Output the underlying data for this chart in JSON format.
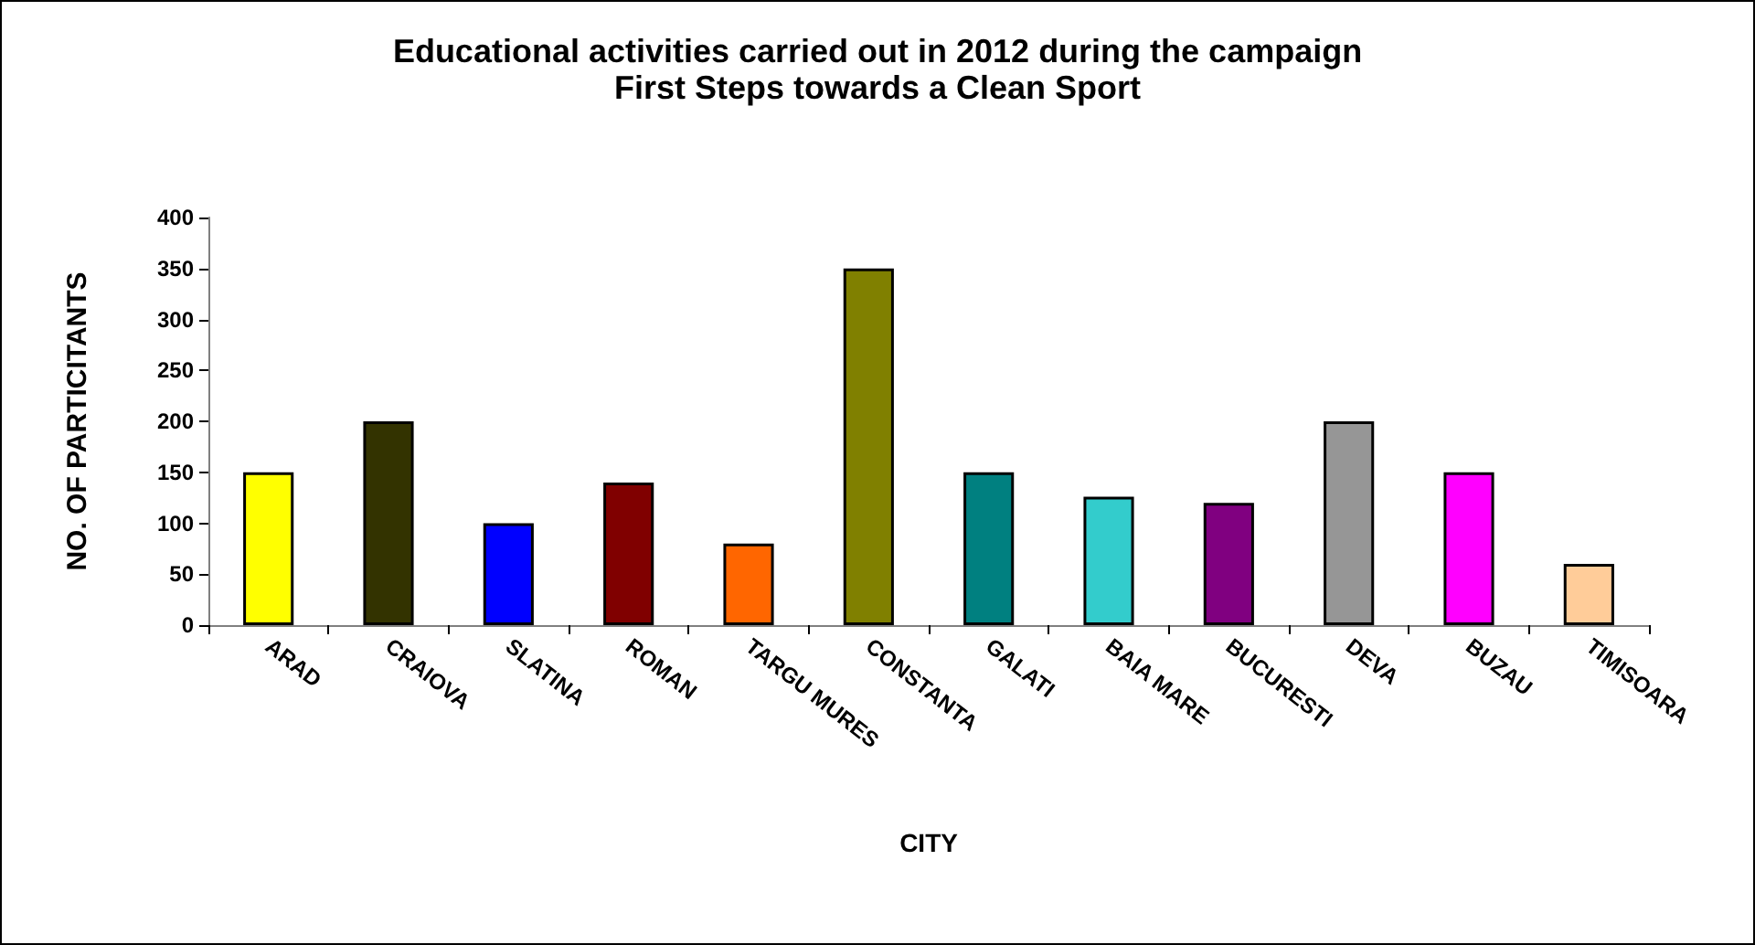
{
  "chart_data": {
    "type": "bar",
    "title": "Educational activities carried out in 2012 during the campaign\nFirst Steps towards a Clean Sport",
    "xlabel": "CITY",
    "ylabel": "NO. OF PARTICITANTS",
    "categories": [
      "ARAD",
      "CRAIOVA",
      "SLATINA",
      "ROMAN",
      "TARGU MURES",
      "CONSTANTA",
      "GALATI",
      "BAIA MARE",
      "BUCURESTI",
      "DEVA",
      "BUZAU",
      "TIMISOARA"
    ],
    "values": [
      150,
      200,
      100,
      140,
      80,
      350,
      150,
      126,
      120,
      200,
      150,
      60
    ],
    "colors": [
      "#ffff00",
      "#333300",
      "#0000ff",
      "#800000",
      "#ff6600",
      "#808000",
      "#008080",
      "#33cccc",
      "#800080",
      "#969696",
      "#ff00ff",
      "#ffcc99"
    ],
    "ylim": [
      0,
      400
    ],
    "yticks": [
      0,
      50,
      100,
      150,
      200,
      250,
      300,
      350,
      400
    ],
    "grid": false
  }
}
